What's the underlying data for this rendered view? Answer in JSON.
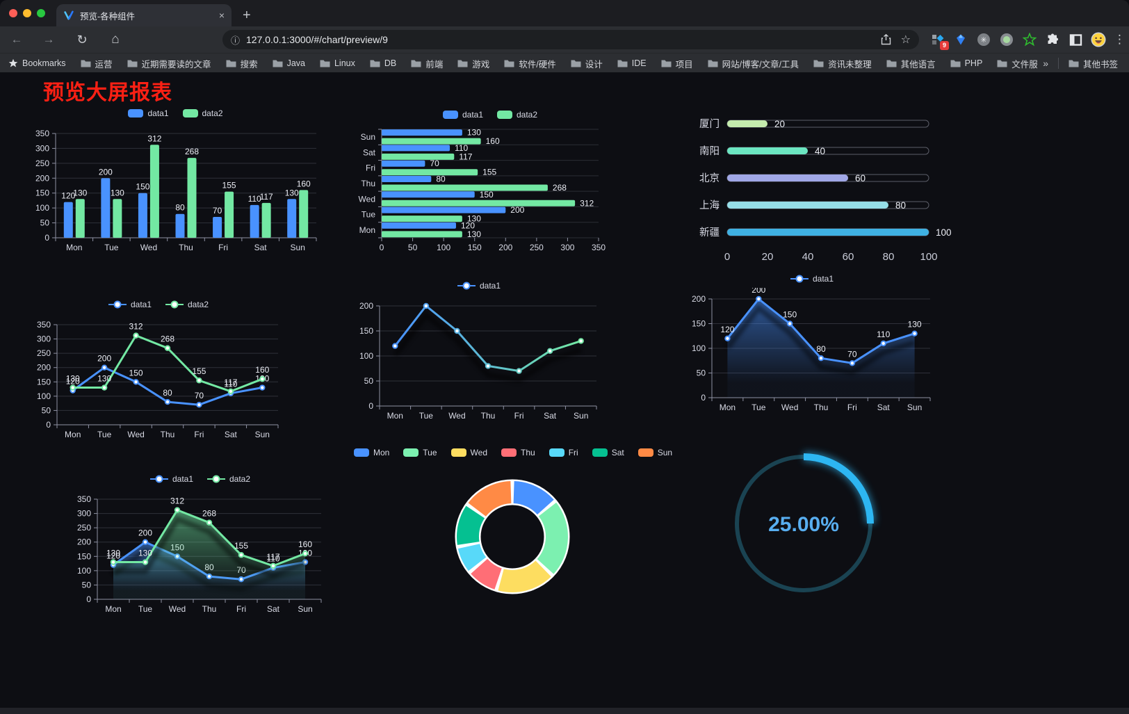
{
  "browser": {
    "tab_title": "预览-各种组件",
    "close_label": "×",
    "new_tab_label": "+",
    "url": "127.0.0.1:3000/#/chart/preview/9",
    "info_icon": "ⓘ",
    "back_label": "←",
    "forward_label": "→",
    "reload_label": "↻",
    "home_label": "⌂",
    "star_label": "☆",
    "menu_label": "⋮",
    "extension_badge": "9",
    "bookmarks_bar_label": "Bookmarks",
    "bookmarks": [
      "运营",
      "近期需要读的文章",
      "搜索",
      "Java",
      "Linux",
      "DB",
      "前端",
      "游戏",
      "软件/硬件",
      "设计",
      "IDE",
      "项目",
      "网站/博客/文章/工具",
      "资讯未整理",
      "其他语言",
      "PHP",
      "文件服务器"
    ],
    "bookmarks_overflow": "»",
    "other_bookmarks_label": "其他书签",
    "traffic_colors": {
      "close": "#ff5f57",
      "minimize": "#febc2e",
      "zoom": "#28c840"
    }
  },
  "page": {
    "title": "预览大屏报表",
    "title_color": "#fb2014"
  },
  "palette": {
    "data1": "#4992ff",
    "data2": "#73e8a3",
    "axis": "#8f91a3",
    "grid": "#2f313a",
    "label": "#d9dbe6",
    "value_label": "#eceef5"
  },
  "chart_data": [
    {
      "id": "bar-grouped",
      "type": "bar",
      "categories": [
        "Mon",
        "Tue",
        "Wed",
        "Thu",
        "Fri",
        "Sat",
        "Sun"
      ],
      "series": [
        {
          "name": "data1",
          "color": "#4992ff",
          "values": [
            120,
            200,
            150,
            80,
            70,
            110,
            130
          ]
        },
        {
          "name": "data2",
          "color": "#73e8a3",
          "values": [
            130,
            130,
            312,
            268,
            155,
            117,
            160
          ]
        }
      ],
      "ylim": [
        0,
        350
      ],
      "ytick_step": 50,
      "legend_position": "top",
      "grid": true,
      "data_labels": true
    },
    {
      "id": "bar-horizontal",
      "type": "bar-horizontal",
      "categories": [
        "Mon",
        "Tue",
        "Wed",
        "Thu",
        "Fri",
        "Sat",
        "Sun"
      ],
      "series": [
        {
          "name": "data1",
          "color": "#4992ff",
          "values": [
            120,
            200,
            150,
            80,
            70,
            110,
            130
          ]
        },
        {
          "name": "data2",
          "color": "#73e8a3",
          "values": [
            130,
            130,
            312,
            268,
            155,
            117,
            160
          ]
        }
      ],
      "xlim": [
        0,
        350
      ],
      "xtick_step": 50,
      "legend_position": "top",
      "data_labels": true
    },
    {
      "id": "city-progress",
      "type": "bar-horizontal-progress",
      "max": 100,
      "xticks": [
        0,
        20,
        40,
        60,
        80,
        100
      ],
      "items": [
        {
          "label": "厦门",
          "value": 20,
          "color": "#c4ebad"
        },
        {
          "label": "南阳",
          "value": 40,
          "color": "#6be6c1"
        },
        {
          "label": "北京",
          "value": 60,
          "color": "#a0a7e6"
        },
        {
          "label": "上海",
          "value": 80,
          "color": "#96dee8"
        },
        {
          "label": "新疆",
          "value": 100,
          "color": "#3fb1e3"
        }
      ]
    },
    {
      "id": "line-two-series",
      "type": "line",
      "categories": [
        "Mon",
        "Tue",
        "Wed",
        "Thu",
        "Fri",
        "Sat",
        "Sun"
      ],
      "series": [
        {
          "name": "data1",
          "color": "#4992ff",
          "values": [
            120,
            200,
            150,
            80,
            70,
            110,
            130
          ]
        },
        {
          "name": "data2",
          "color": "#73e8a3",
          "values": [
            130,
            130,
            312,
            268,
            155,
            117,
            160
          ]
        }
      ],
      "ylim": [
        0,
        350
      ],
      "ytick_step": 50,
      "legend_position": "top",
      "data_labels": true
    },
    {
      "id": "line-gradient",
      "type": "line",
      "categories": [
        "Mon",
        "Tue",
        "Wed",
        "Thu",
        "Fri",
        "Sat",
        "Sun"
      ],
      "series": [
        {
          "name": "data1",
          "color": "#4992ff",
          "color_gradient": [
            "#4992ff",
            "#73e8a3"
          ],
          "values": [
            120,
            200,
            150,
            80,
            70,
            110,
            130
          ],
          "shadow": true
        }
      ],
      "ylim": [
        0,
        200
      ],
      "ytick_step": 50,
      "legend_position": "top",
      "data_labels": false
    },
    {
      "id": "area-single",
      "type": "area",
      "categories": [
        "Mon",
        "Tue",
        "Wed",
        "Thu",
        "Fri",
        "Sat",
        "Sun"
      ],
      "series": [
        {
          "name": "data1",
          "color": "#4992ff",
          "values": [
            120,
            200,
            150,
            80,
            70,
            110,
            130
          ],
          "area": true,
          "shadow": true
        }
      ],
      "ylim": [
        0,
        200
      ],
      "ytick_step": 50,
      "legend_position": "top",
      "data_labels": true
    },
    {
      "id": "area-two-series",
      "type": "area",
      "categories": [
        "Mon",
        "Tue",
        "Wed",
        "Thu",
        "Fri",
        "Sat",
        "Sun"
      ],
      "series": [
        {
          "name": "data1",
          "color": "#4992ff",
          "values": [
            120,
            200,
            150,
            80,
            70,
            110,
            130
          ],
          "area": true,
          "shadow": true
        },
        {
          "name": "data2",
          "color": "#73e8a3",
          "values": [
            130,
            130,
            312,
            268,
            155,
            117,
            160
          ],
          "area": true,
          "shadow": true
        }
      ],
      "ylim": [
        0,
        350
      ],
      "ytick_step": 50,
      "legend_position": "top",
      "data_labels": true
    },
    {
      "id": "donut",
      "type": "pie",
      "inner_radius_ratio": 0.6,
      "legend_position": "top",
      "categories": [
        "Mon",
        "Tue",
        "Wed",
        "Thu",
        "Fri",
        "Sat",
        "Sun"
      ],
      "values": [
        120,
        200,
        150,
        80,
        70,
        110,
        130
      ],
      "colors": [
        "#4992ff",
        "#7cf0b0",
        "#fddd60",
        "#ff6e76",
        "#58d9f9",
        "#05c091",
        "#ff8a45"
      ]
    },
    {
      "id": "gauge",
      "type": "gauge",
      "value": 25,
      "display": "25.00%",
      "color": "#2db6f2",
      "track_color": "#1a4352",
      "text_color": "#58aef0"
    }
  ]
}
